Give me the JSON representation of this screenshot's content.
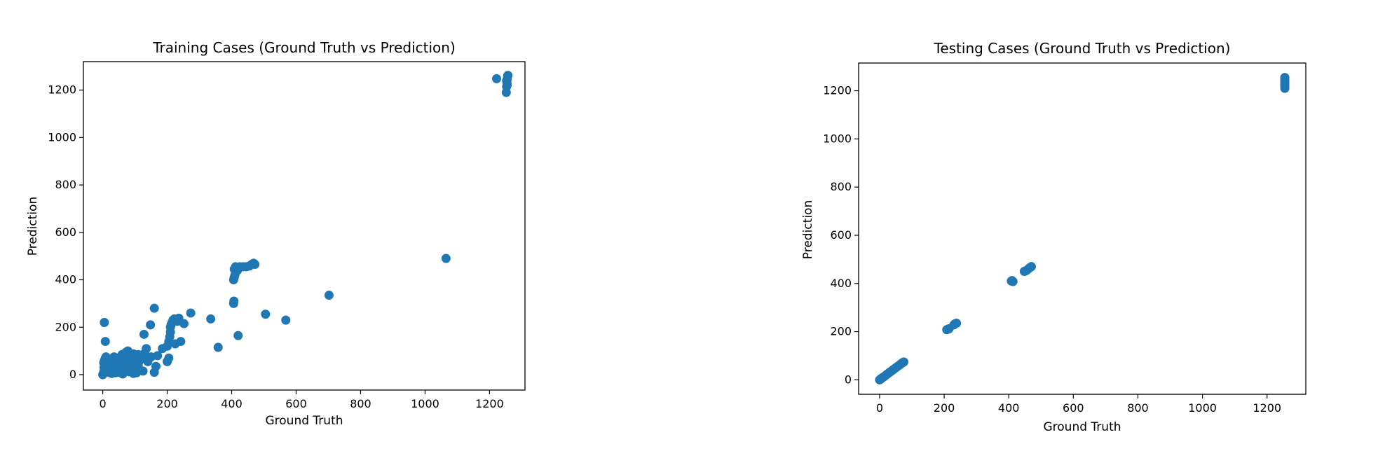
{
  "chart_data": [
    {
      "type": "scatter",
      "title": "Training Cases (Ground Truth vs Prediction)",
      "xlabel": "Ground Truth",
      "ylabel": "Prediction",
      "xlim": [
        -60,
        1310
      ],
      "ylim": [
        -65,
        1320
      ],
      "xticks": [
        0,
        200,
        400,
        600,
        800,
        1000,
        1200
      ],
      "yticks": [
        0,
        200,
        400,
        600,
        800,
        1000,
        1200
      ],
      "color": "#1f77b4",
      "points": [
        [
          0,
          0
        ],
        [
          2,
          5
        ],
        [
          3,
          12
        ],
        [
          5,
          20
        ],
        [
          4,
          30
        ],
        [
          6,
          40
        ],
        [
          3,
          50
        ],
        [
          5,
          60
        ],
        [
          8,
          70
        ],
        [
          10,
          75
        ],
        [
          4,
          8
        ],
        [
          7,
          18
        ],
        [
          9,
          28
        ],
        [
          12,
          38
        ],
        [
          14,
          48
        ],
        [
          10,
          58
        ],
        [
          15,
          68
        ],
        [
          18,
          10
        ],
        [
          20,
          22
        ],
        [
          22,
          35
        ],
        [
          25,
          45
        ],
        [
          28,
          5
        ],
        [
          30,
          15
        ],
        [
          32,
          28
        ],
        [
          35,
          40
        ],
        [
          38,
          55
        ],
        [
          40,
          8
        ],
        [
          42,
          20
        ],
        [
          45,
          32
        ],
        [
          48,
          45
        ],
        [
          50,
          60
        ],
        [
          52,
          10
        ],
        [
          55,
          25
        ],
        [
          58,
          38
        ],
        [
          60,
          50
        ],
        [
          62,
          3
        ],
        [
          65,
          15
        ],
        [
          68,
          28
        ],
        [
          70,
          40
        ],
        [
          72,
          55
        ],
        [
          75,
          65
        ],
        [
          78,
          100
        ],
        [
          80,
          90
        ],
        [
          82,
          12
        ],
        [
          85,
          30
        ],
        [
          88,
          45
        ],
        [
          90,
          60
        ],
        [
          92,
          75
        ],
        [
          95,
          5
        ],
        [
          98,
          20
        ],
        [
          100,
          35
        ],
        [
          102,
          50
        ],
        [
          105,
          8
        ],
        [
          108,
          25
        ],
        [
          110,
          40
        ],
        [
          115,
          60
        ],
        [
          120,
          70
        ],
        [
          125,
          15
        ],
        [
          130,
          90
        ],
        [
          135,
          110
        ],
        [
          140,
          55
        ],
        [
          150,
          75
        ],
        [
          160,
          10
        ],
        [
          165,
          35
        ],
        [
          170,
          80
        ],
        [
          28,
          65
        ],
        [
          35,
          75
        ],
        [
          45,
          70
        ],
        [
          60,
          85
        ],
        [
          72,
          95
        ],
        [
          85,
          80
        ],
        [
          95,
          88
        ],
        [
          110,
          85
        ],
        [
          125,
          70
        ],
        [
          5,
          220
        ],
        [
          8,
          140
        ],
        [
          128,
          170
        ],
        [
          148,
          210
        ],
        [
          160,
          280
        ],
        [
          185,
          110
        ],
        [
          200,
          120
        ],
        [
          200,
          55
        ],
        [
          205,
          70
        ],
        [
          205,
          140
        ],
        [
          208,
          160
        ],
        [
          210,
          180
        ],
        [
          210,
          200
        ],
        [
          212,
          210
        ],
        [
          215,
          220
        ],
        [
          218,
          230
        ],
        [
          222,
          235
        ],
        [
          225,
          130
        ],
        [
          232,
          225
        ],
        [
          236,
          238
        ],
        [
          242,
          140
        ],
        [
          252,
          215
        ],
        [
          273,
          260
        ],
        [
          335,
          235
        ],
        [
          358,
          115
        ],
        [
          406,
          300
        ],
        [
          407,
          310
        ],
        [
          406,
          400
        ],
        [
          408,
          410
        ],
        [
          410,
          420
        ],
        [
          408,
          445
        ],
        [
          412,
          455
        ],
        [
          418,
          440
        ],
        [
          420,
          165
        ],
        [
          425,
          455
        ],
        [
          435,
          455
        ],
        [
          445,
          455
        ],
        [
          455,
          458
        ],
        [
          462,
          465
        ],
        [
          468,
          470
        ],
        [
          472,
          465
        ],
        [
          505,
          255
        ],
        [
          568,
          230
        ],
        [
          702,
          335
        ],
        [
          1065,
          490
        ],
        [
          1222,
          1248
        ],
        [
          1252,
          1190
        ],
        [
          1253,
          1215
        ],
        [
          1254,
          1230
        ],
        [
          1255,
          1245
        ],
        [
          1256,
          1258
        ],
        [
          1257,
          1262
        ],
        [
          1253,
          1240
        ],
        [
          1255,
          1222
        ]
      ]
    },
    {
      "type": "scatter",
      "title": "Testing Cases (Ground Truth vs Prediction)",
      "xlabel": "Ground Truth",
      "ylabel": "Prediction",
      "xlim": [
        -65,
        1320
      ],
      "ylim": [
        -60,
        1315
      ],
      "xticks": [
        0,
        200,
        400,
        600,
        800,
        1000,
        1200
      ],
      "yticks": [
        0,
        200,
        400,
        600,
        800,
        1000,
        1200
      ],
      "color": "#1f77b4",
      "points": [
        [
          0,
          0
        ],
        [
          2,
          2
        ],
        [
          4,
          4
        ],
        [
          6,
          6
        ],
        [
          10,
          10
        ],
        [
          15,
          14
        ],
        [
          20,
          20
        ],
        [
          25,
          25
        ],
        [
          30,
          30
        ],
        [
          35,
          35
        ],
        [
          40,
          40
        ],
        [
          45,
          45
        ],
        [
          50,
          50
        ],
        [
          55,
          55
        ],
        [
          60,
          60
        ],
        [
          65,
          65
        ],
        [
          70,
          70
        ],
        [
          72,
          72
        ],
        [
          75,
          74
        ],
        [
          208,
          208
        ],
        [
          212,
          210
        ],
        [
          215,
          212
        ],
        [
          230,
          228
        ],
        [
          234,
          233
        ],
        [
          238,
          235
        ],
        [
          408,
          410
        ],
        [
          410,
          412
        ],
        [
          413,
          408
        ],
        [
          448,
          450
        ],
        [
          452,
          452
        ],
        [
          456,
          455
        ],
        [
          462,
          462
        ],
        [
          466,
          466
        ],
        [
          470,
          470
        ],
        [
          1255,
          1210
        ],
        [
          1255,
          1218
        ],
        [
          1255,
          1225
        ],
        [
          1255,
          1232
        ],
        [
          1255,
          1240
        ],
        [
          1255,
          1248
        ],
        [
          1255,
          1255
        ]
      ]
    }
  ]
}
